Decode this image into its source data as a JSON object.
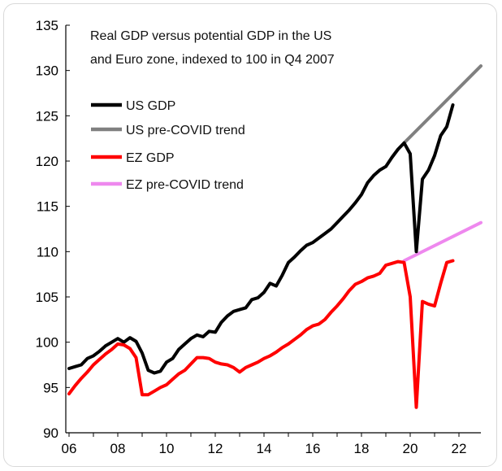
{
  "chart_data": {
    "type": "line",
    "title_lines": [
      "Real GDP versus potential GDP in the US",
      "and Euro zone, indexed to 100 in Q4 2007"
    ],
    "xlabel": "",
    "ylabel": "",
    "xlim": [
      2006,
      2022.9
    ],
    "ylim": [
      90,
      135
    ],
    "x_ticks": [
      2006,
      2008,
      2010,
      2012,
      2014,
      2016,
      2018,
      2020,
      2022
    ],
    "x_tick_labels": [
      "06",
      "08",
      "10",
      "12",
      "14",
      "16",
      "18",
      "20",
      "22"
    ],
    "y_ticks": [
      90,
      95,
      100,
      105,
      110,
      115,
      120,
      125,
      130,
      135
    ],
    "y_tick_labels": [
      "90",
      "95",
      "100",
      "105",
      "110",
      "115",
      "120",
      "125",
      "130",
      "135"
    ],
    "grid": false,
    "legend_position": "top-left",
    "series": [
      {
        "name": "US GDP",
        "color": "#000000",
        "points": [
          [
            2006.0,
            97.1
          ],
          [
            2006.25,
            97.3
          ],
          [
            2006.5,
            97.5
          ],
          [
            2006.75,
            98.2
          ],
          [
            2007.0,
            98.5
          ],
          [
            2007.25,
            99.0
          ],
          [
            2007.5,
            99.6
          ],
          [
            2007.75,
            100.0
          ],
          [
            2008.0,
            100.4
          ],
          [
            2008.25,
            100.0
          ],
          [
            2008.5,
            100.5
          ],
          [
            2008.75,
            100.1
          ],
          [
            2009.0,
            98.8
          ],
          [
            2009.25,
            96.9
          ],
          [
            2009.5,
            96.6
          ],
          [
            2009.75,
            96.8
          ],
          [
            2010.0,
            97.8
          ],
          [
            2010.25,
            98.2
          ],
          [
            2010.5,
            99.2
          ],
          [
            2010.75,
            99.8
          ],
          [
            2011.0,
            100.4
          ],
          [
            2011.25,
            100.8
          ],
          [
            2011.5,
            100.6
          ],
          [
            2011.75,
            101.2
          ],
          [
            2012.0,
            101.1
          ],
          [
            2012.25,
            102.2
          ],
          [
            2012.5,
            102.9
          ],
          [
            2012.75,
            103.4
          ],
          [
            2013.0,
            103.6
          ],
          [
            2013.25,
            103.8
          ],
          [
            2013.5,
            104.7
          ],
          [
            2013.75,
            104.9
          ],
          [
            2014.0,
            105.5
          ],
          [
            2014.25,
            106.5
          ],
          [
            2014.5,
            106.2
          ],
          [
            2014.75,
            107.4
          ],
          [
            2015.0,
            108.8
          ],
          [
            2015.25,
            109.4
          ],
          [
            2015.5,
            110.1
          ],
          [
            2015.75,
            110.7
          ],
          [
            2016.0,
            111.0
          ],
          [
            2016.25,
            111.5
          ],
          [
            2016.5,
            112.0
          ],
          [
            2016.75,
            112.5
          ],
          [
            2017.0,
            113.2
          ],
          [
            2017.25,
            113.9
          ],
          [
            2017.5,
            114.6
          ],
          [
            2017.75,
            115.4
          ],
          [
            2018.0,
            116.3
          ],
          [
            2018.25,
            117.6
          ],
          [
            2018.5,
            118.4
          ],
          [
            2018.75,
            119.0
          ],
          [
            2019.0,
            119.4
          ],
          [
            2019.25,
            120.4
          ],
          [
            2019.5,
            121.3
          ],
          [
            2019.75,
            122.0
          ],
          [
            2020.0,
            120.8
          ],
          [
            2020.25,
            110.0
          ],
          [
            2020.5,
            118.0
          ],
          [
            2020.75,
            119.0
          ],
          [
            2021.0,
            120.6
          ],
          [
            2021.25,
            122.8
          ],
          [
            2021.5,
            123.8
          ],
          [
            2021.75,
            126.2
          ]
        ]
      },
      {
        "name": "US pre-COVID trend",
        "color": "#808080",
        "points": [
          [
            2019.75,
            122.0
          ],
          [
            2022.9,
            130.5
          ]
        ]
      },
      {
        "name": "EZ GDP",
        "color": "#ff0000",
        "points": [
          [
            2006.0,
            94.3
          ],
          [
            2006.25,
            95.2
          ],
          [
            2006.5,
            96.0
          ],
          [
            2006.75,
            96.7
          ],
          [
            2007.0,
            97.5
          ],
          [
            2007.25,
            98.1
          ],
          [
            2007.5,
            98.7
          ],
          [
            2007.75,
            99.2
          ],
          [
            2008.0,
            99.8
          ],
          [
            2008.25,
            99.7
          ],
          [
            2008.5,
            99.3
          ],
          [
            2008.75,
            98.3
          ],
          [
            2009.0,
            94.2
          ],
          [
            2009.25,
            94.2
          ],
          [
            2009.5,
            94.6
          ],
          [
            2009.75,
            95.0
          ],
          [
            2010.0,
            95.3
          ],
          [
            2010.25,
            95.9
          ],
          [
            2010.5,
            96.5
          ],
          [
            2010.75,
            96.9
          ],
          [
            2011.0,
            97.6
          ],
          [
            2011.25,
            98.3
          ],
          [
            2011.5,
            98.3
          ],
          [
            2011.75,
            98.2
          ],
          [
            2012.0,
            97.8
          ],
          [
            2012.25,
            97.6
          ],
          [
            2012.5,
            97.5
          ],
          [
            2012.75,
            97.2
          ],
          [
            2013.0,
            96.7
          ],
          [
            2013.25,
            97.2
          ],
          [
            2013.5,
            97.5
          ],
          [
            2013.75,
            97.8
          ],
          [
            2014.0,
            98.2
          ],
          [
            2014.25,
            98.5
          ],
          [
            2014.5,
            98.9
          ],
          [
            2014.75,
            99.4
          ],
          [
            2015.0,
            99.8
          ],
          [
            2015.25,
            100.3
          ],
          [
            2015.5,
            100.8
          ],
          [
            2015.75,
            101.4
          ],
          [
            2016.0,
            101.8
          ],
          [
            2016.25,
            102.0
          ],
          [
            2016.5,
            102.5
          ],
          [
            2016.75,
            103.3
          ],
          [
            2017.0,
            104.0
          ],
          [
            2017.25,
            104.8
          ],
          [
            2017.5,
            105.7
          ],
          [
            2017.75,
            106.4
          ],
          [
            2018.0,
            106.7
          ],
          [
            2018.25,
            107.1
          ],
          [
            2018.5,
            107.3
          ],
          [
            2018.75,
            107.6
          ],
          [
            2019.0,
            108.5
          ],
          [
            2019.25,
            108.7
          ],
          [
            2019.5,
            108.9
          ],
          [
            2019.75,
            108.8
          ],
          [
            2020.0,
            105.0
          ],
          [
            2020.25,
            92.8
          ],
          [
            2020.5,
            104.5
          ],
          [
            2020.75,
            104.2
          ],
          [
            2021.0,
            104.0
          ],
          [
            2021.25,
            106.5
          ],
          [
            2021.5,
            108.8
          ],
          [
            2021.75,
            109.0
          ]
        ]
      },
      {
        "name": "EZ pre-COVID trend",
        "color": "#ee88ee",
        "points": [
          [
            2019.75,
            109.0
          ],
          [
            2022.9,
            113.2
          ]
        ]
      }
    ]
  }
}
